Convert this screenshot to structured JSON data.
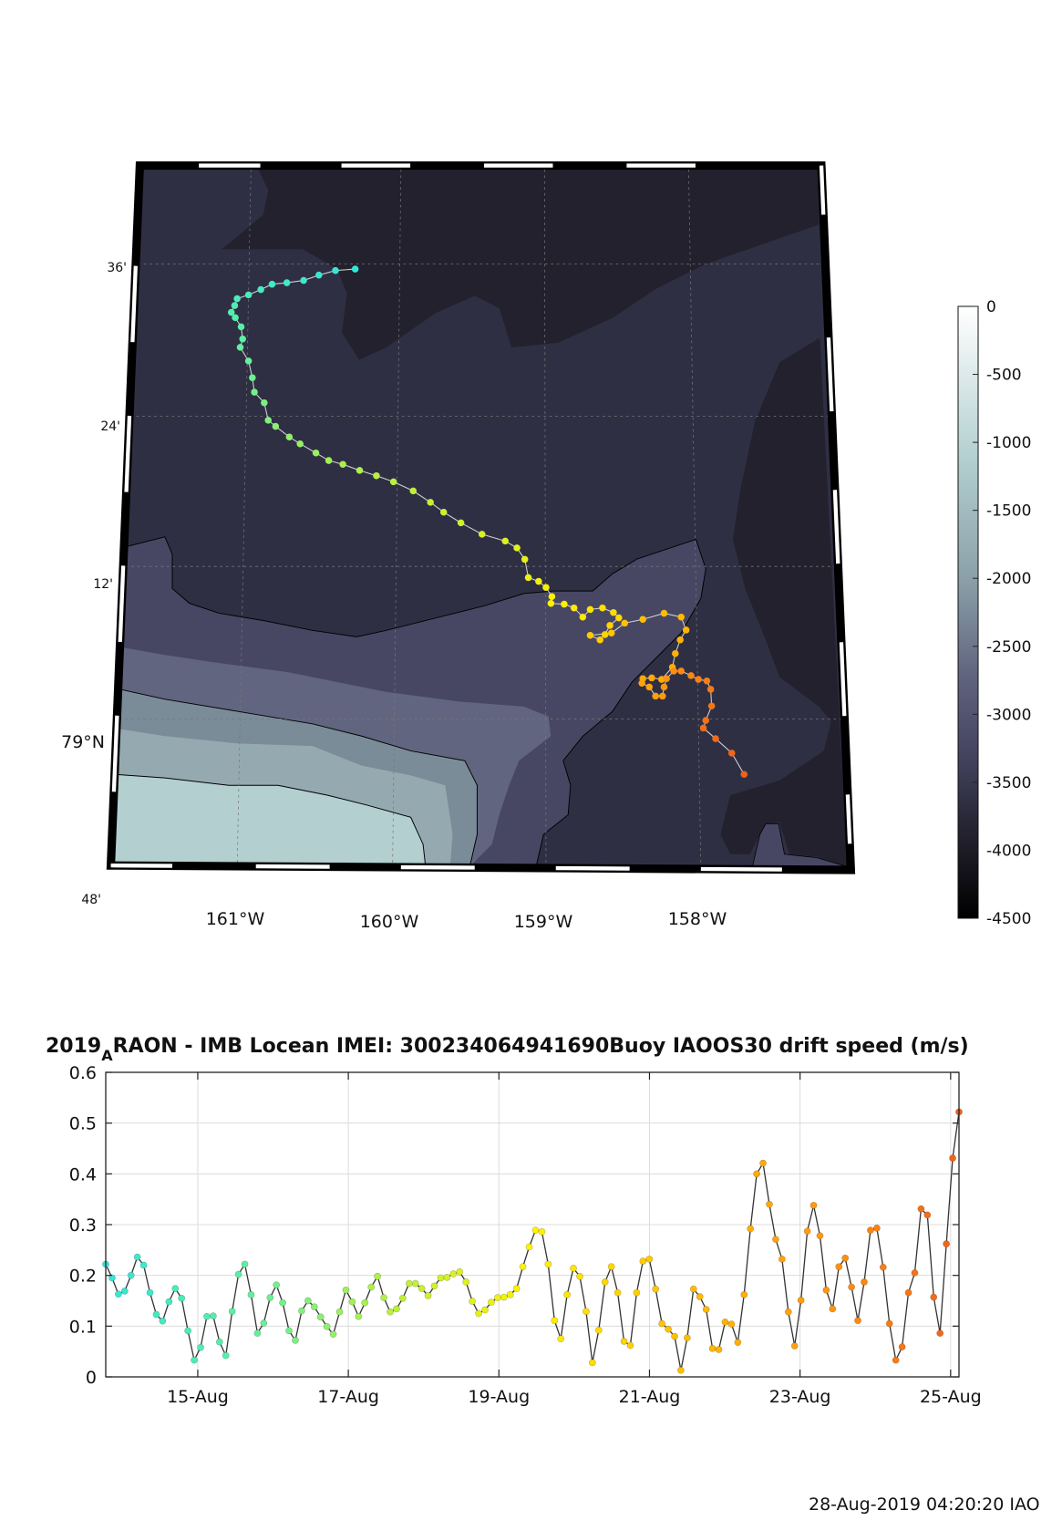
{
  "colors": {
    "colormap_stops": [
      "#33e6d8",
      "#5ef0a0",
      "#b8f040",
      "#fff200",
      "#ffc000",
      "#ff9a10",
      "#f2601a"
    ],
    "bathymetry": [
      "#22212d",
      "#2f2f44",
      "#474764",
      "#61657f",
      "#7a8c98",
      "#95aab0",
      "#b3cfd0"
    ]
  },
  "map": {
    "lat_labels": [
      "36'",
      "24'",
      "12'",
      "79°N",
      "48'"
    ],
    "lon_labels": [
      "161°W",
      "160°W",
      "159°W",
      "158°W"
    ],
    "colorbar": {
      "range": [
        -4500,
        0
      ],
      "tick_labels": [
        "0",
        "-500",
        "-1000",
        "-1500",
        "-2000",
        "-2500",
        "-3000",
        "-3500",
        "-4000",
        "-4500"
      ]
    },
    "track": [
      [
        -160.243,
        79.592
      ],
      [
        -160.371,
        79.59
      ],
      [
        -160.479,
        79.584
      ],
      [
        -160.578,
        79.577
      ],
      [
        -160.687,
        79.574
      ],
      [
        -160.783,
        79.572
      ],
      [
        -160.856,
        79.565
      ],
      [
        -160.936,
        79.558
      ],
      [
        -161.01,
        79.553
      ],
      [
        -161.026,
        79.544
      ],
      [
        -161.048,
        79.535
      ],
      [
        -161.022,
        79.528
      ],
      [
        -160.984,
        79.516
      ],
      [
        -160.974,
        79.5
      ],
      [
        -160.99,
        79.489
      ],
      [
        -160.936,
        79.471
      ],
      [
        -160.911,
        79.449
      ],
      [
        -160.898,
        79.43
      ],
      [
        -160.834,
        79.416
      ],
      [
        -160.808,
        79.393
      ],
      [
        -160.76,
        79.385
      ],
      [
        -160.671,
        79.371
      ],
      [
        -160.601,
        79.362
      ],
      [
        -160.498,
        79.35
      ],
      [
        -160.415,
        79.34
      ],
      [
        -160.323,
        79.335
      ],
      [
        -160.214,
        79.327
      ],
      [
        -160.105,
        79.32
      ],
      [
        -159.994,
        79.312
      ],
      [
        -159.866,
        79.3
      ],
      [
        -159.754,
        79.285
      ],
      [
        -159.668,
        79.272
      ],
      [
        -159.556,
        79.258
      ],
      [
        -159.419,
        79.243
      ],
      [
        -159.268,
        79.234
      ],
      [
        -159.192,
        79.225
      ],
      [
        -159.141,
        79.21
      ],
      [
        -159.118,
        79.186
      ],
      [
        -159.051,
        79.181
      ],
      [
        -159.003,
        79.173
      ],
      [
        -158.965,
        79.161
      ],
      [
        -158.971,
        79.152
      ],
      [
        -158.885,
        79.151
      ],
      [
        -158.821,
        79.146
      ],
      [
        -158.764,
        79.134
      ],
      [
        -158.716,
        79.144
      ],
      [
        -158.636,
        79.146
      ],
      [
        -158.565,
        79.14
      ],
      [
        -158.53,
        79.133
      ],
      [
        -158.588,
        79.123
      ],
      [
        -158.62,
        79.111
      ],
      [
        -158.652,
        79.104
      ],
      [
        -158.716,
        79.11
      ],
      [
        -158.578,
        79.113
      ],
      [
        -158.492,
        79.126
      ],
      [
        -158.374,
        79.131
      ],
      [
        -158.236,
        79.139
      ],
      [
        -158.125,
        79.134
      ],
      [
        -158.093,
        79.117
      ],
      [
        -158.131,
        79.104
      ],
      [
        -158.163,
        79.086
      ],
      [
        -158.182,
        79.068
      ],
      [
        -158.252,
        79.052
      ],
      [
        -158.316,
        79.054
      ],
      [
        -158.374,
        79.053
      ],
      [
        -158.38,
        79.047
      ],
      [
        -158.332,
        79.042
      ],
      [
        -158.291,
        79.03
      ],
      [
        -158.246,
        79.03
      ],
      [
        -158.236,
        79.042
      ],
      [
        -158.22,
        79.053
      ],
      [
        -158.173,
        79.063
      ],
      [
        -158.125,
        79.063
      ],
      [
        -158.061,
        79.057
      ],
      [
        -158.013,
        79.052
      ],
      [
        -157.958,
        79.05
      ],
      [
        -157.933,
        79.039
      ],
      [
        -157.927,
        79.017
      ],
      [
        -157.965,
        78.998
      ],
      [
        -157.981,
        78.988
      ],
      [
        -157.901,
        78.974
      ],
      [
        -157.796,
        78.955
      ],
      [
        -157.716,
        78.927
      ]
    ]
  },
  "chart_data": {
    "type": "line",
    "title_part1": "2019",
    "title_subscript": "A",
    "title_part2": "RAON - IMB Locean IMEI: 300234064941690Buoy IAOOS30 drift speed (m/s)",
    "xlabel": "",
    "ylabel": "",
    "ylim": [
      0,
      0.6
    ],
    "yticks": [
      0,
      0.1,
      0.2,
      0.3,
      0.4,
      0.5,
      0.6
    ],
    "ytick_labels": [
      "0",
      "0.1",
      "0.2",
      "0.3",
      "0.4",
      "0.5",
      "0.6"
    ],
    "time_start": "2019-08-13T18:40:00",
    "time_end": "2019-08-25T02:40:00",
    "xticks": [
      "2019-08-15T00:00:00",
      "2019-08-17T00:00:00",
      "2019-08-19T00:00:00",
      "2019-08-21T00:00:00",
      "2019-08-23T00:00:00",
      "2019-08-25T00:00:00"
    ],
    "xtick_labels": [
      "15-Aug",
      "17-Aug",
      "19-Aug",
      "21-Aug",
      "23-Aug",
      "25-Aug"
    ],
    "grid": true,
    "values": [
      0.222,
      0.195,
      0.163,
      0.169,
      0.2,
      0.236,
      0.22,
      0.166,
      0.123,
      0.11,
      0.148,
      0.174,
      0.155,
      0.091,
      0.033,
      0.058,
      0.119,
      0.12,
      0.069,
      0.042,
      0.129,
      0.202,
      0.222,
      0.162,
      0.086,
      0.106,
      0.156,
      0.181,
      0.146,
      0.091,
      0.072,
      0.13,
      0.15,
      0.138,
      0.118,
      0.099,
      0.084,
      0.128,
      0.171,
      0.148,
      0.119,
      0.146,
      0.177,
      0.198,
      0.156,
      0.128,
      0.134,
      0.155,
      0.184,
      0.184,
      0.174,
      0.16,
      0.179,
      0.195,
      0.196,
      0.203,
      0.207,
      0.187,
      0.149,
      0.125,
      0.132,
      0.147,
      0.156,
      0.157,
      0.162,
      0.174,
      0.217,
      0.256,
      0.289,
      0.286,
      0.222,
      0.111,
      0.075,
      0.162,
      0.214,
      0.198,
      0.129,
      0.028,
      0.092,
      0.187,
      0.217,
      0.166,
      0.07,
      0.062,
      0.166,
      0.228,
      0.232,
      0.173,
      0.105,
      0.094,
      0.08,
      0.013,
      0.077,
      0.173,
      0.158,
      0.133,
      0.056,
      0.054,
      0.108,
      0.104,
      0.068,
      0.162,
      0.292,
      0.4,
      0.421,
      0.34,
      0.271,
      0.232,
      0.128,
      0.061,
      0.151,
      0.287,
      0.338,
      0.278,
      0.171,
      0.134,
      0.217,
      0.234,
      0.177,
      0.111,
      0.187,
      0.289,
      0.293,
      0.216,
      0.105,
      0.033,
      0.059,
      0.166,
      0.205,
      0.331,
      0.319,
      0.157,
      0.086,
      0.262,
      0.431,
      0.522
    ]
  },
  "footer": {
    "timestamp": "28-Aug-2019 04:20:20 IAO"
  }
}
